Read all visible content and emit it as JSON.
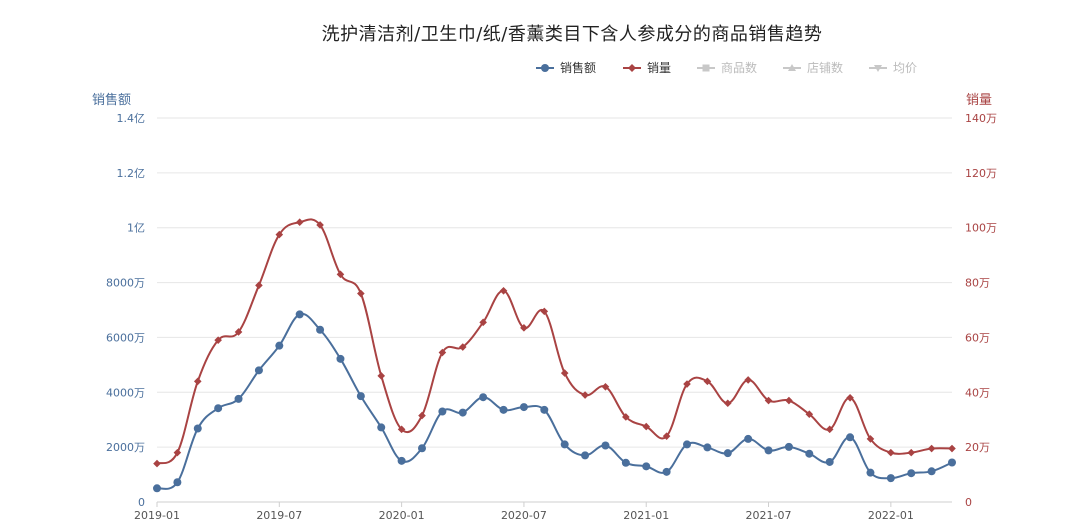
{
  "chart_data": {
    "type": "line",
    "title": "洗护清洁剂/卫生巾/纸/香薰类目下含人参成分的商品销售趋势",
    "legend": {
      "placement": "top-right",
      "items": [
        {
          "name": "销售额",
          "active": true,
          "color": "#4a6f9c",
          "icon": "circle-icon"
        },
        {
          "name": "销量",
          "active": true,
          "color": "#a94343",
          "icon": "diamond-icon"
        },
        {
          "name": "商品数",
          "active": false,
          "color": "#c8c8c8",
          "icon": "square-icon"
        },
        {
          "name": "店铺数",
          "active": false,
          "color": "#c8c8c8",
          "icon": "triangle-icon"
        },
        {
          "name": "均价",
          "active": false,
          "color": "#c8c8c8",
          "icon": "triangle-down-icon"
        }
      ]
    },
    "ylabel_left": "销售额",
    "ylabel_right": "销量",
    "y_left_ticks": [
      "0",
      "2000万",
      "4000万",
      "6000万",
      "8000万",
      "1亿",
      "1.2亿",
      "1.4亿"
    ],
    "y_right_ticks": [
      "0",
      "20万",
      "40万",
      "60万",
      "80万",
      "100万",
      "120万",
      "140万"
    ],
    "y_left_range": [
      0,
      14000
    ],
    "y_right_range": [
      0,
      140
    ],
    "x_tick_labels": [
      "2019-01",
      "2019-07",
      "2020-01",
      "2020-07",
      "2021-01",
      "2021-07",
      "2022-01"
    ],
    "x": [
      "2019-01",
      "2019-02",
      "2019-03",
      "2019-04",
      "2019-05",
      "2019-06",
      "2019-07",
      "2019-08",
      "2019-09",
      "2019-10",
      "2019-11",
      "2019-12",
      "2020-01",
      "2020-02",
      "2020-03",
      "2020-04",
      "2020-05",
      "2020-06",
      "2020-07",
      "2020-08",
      "2020-09",
      "2020-10",
      "2020-11",
      "2020-12",
      "2021-01",
      "2021-02",
      "2021-03",
      "2021-04",
      "2021-05",
      "2021-06",
      "2021-07",
      "2021-08",
      "2021-09",
      "2021-10",
      "2021-11",
      "2021-12",
      "2022-01",
      "2022-02",
      "2022-03",
      "2022-04"
    ],
    "grid": true,
    "series": [
      {
        "name": "销售额",
        "axis": "left",
        "color": "#4a6f9c",
        "unit": "万",
        "values": [
          500,
          720,
          2680,
          3420,
          3760,
          4800,
          5700,
          6840,
          6280,
          5220,
          3860,
          2720,
          1500,
          1960,
          3300,
          3260,
          3820,
          3360,
          3460,
          3360,
          2100,
          1700,
          2060,
          1430,
          1300,
          1100,
          2100,
          1990,
          1780,
          2300,
          1880,
          2010,
          1760,
          1460,
          2360,
          1070,
          870,
          1050,
          1120,
          1440
        ]
      },
      {
        "name": "销量",
        "axis": "right",
        "color": "#a94343",
        "unit": "万",
        "values": [
          14,
          18,
          44,
          59,
          62,
          79,
          97.5,
          102,
          101,
          83,
          76,
          46,
          26.5,
          31.5,
          54.5,
          56.5,
          65.5,
          77,
          63.5,
          69.5,
          47,
          39,
          42,
          31,
          27.5,
          24,
          43,
          44,
          36,
          44.5,
          37,
          37,
          32,
          26.5,
          38,
          23,
          18,
          18,
          19.5,
          19.5
        ]
      }
    ]
  }
}
